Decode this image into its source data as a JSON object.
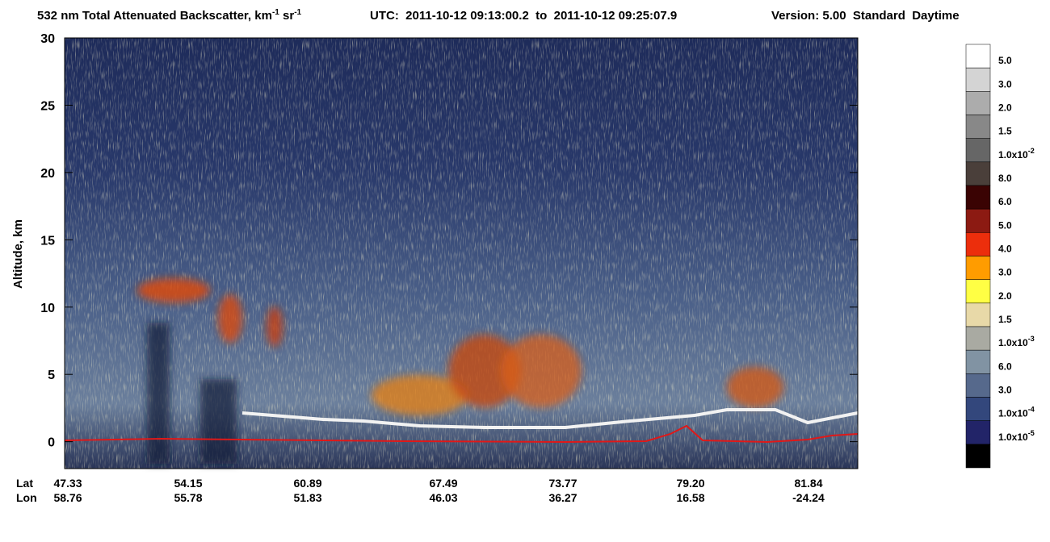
{
  "chart_data": {
    "type": "curtain",
    "title": {
      "text1": "532 nm Total Attenuated Backscatter, km",
      "sup1": "-1",
      "text2": " sr",
      "sup2": "-1"
    },
    "utc": "UTC:  2011-10-12 09:13:00.2  to  2011-10-12 09:25:07.9",
    "version": "Version: 5.00  Standard  Daytime",
    "y_label": "Altitude, km",
    "ylim": [
      -2,
      30
    ],
    "yticks": [
      0,
      5,
      10,
      15,
      20,
      25,
      30
    ],
    "x_rows": [
      {
        "name": "Lat",
        "labels": [
          "47.33",
          "54.15",
          "60.89",
          "67.49",
          "73.77",
          "79.20",
          "81.84"
        ]
      },
      {
        "name": "Lon",
        "labels": [
          "58.76",
          "55.78",
          "51.83",
          "46.03",
          "36.27",
          "16.58",
          "-24.24"
        ]
      }
    ],
    "colorbar": {
      "colors": [
        "#ffffff",
        "#d4d4d4",
        "#acacac",
        "#888888",
        "#666666",
        "#4a3f3a",
        "#3a0303",
        "#8c1a12",
        "#ec2e0c",
        "#ff9c00",
        "#ffff44",
        "#e8d9a8",
        "#a9aaa2",
        "#8193a3",
        "#56698c",
        "#33477c",
        "#222468",
        "#000000"
      ],
      "labels": [
        {
          "text": "5.0"
        },
        {
          "text": "3.0"
        },
        {
          "text": "2.0"
        },
        {
          "text": "1.5"
        },
        {
          "text": "1.0x10",
          "sup": "-2"
        },
        {
          "text": "8.0"
        },
        {
          "text": "6.0"
        },
        {
          "text": "5.0"
        },
        {
          "text": "4.0"
        },
        {
          "text": "3.0"
        },
        {
          "text": "2.0"
        },
        {
          "text": "1.5"
        },
        {
          "text": "1.0x10",
          "sup": "-3"
        },
        {
          "text": "6.0"
        },
        {
          "text": "3.0"
        },
        {
          "text": "1.0x10",
          "sup": "-4"
        },
        {
          "text": "1.0x10",
          "sup": "-5"
        }
      ]
    }
  }
}
